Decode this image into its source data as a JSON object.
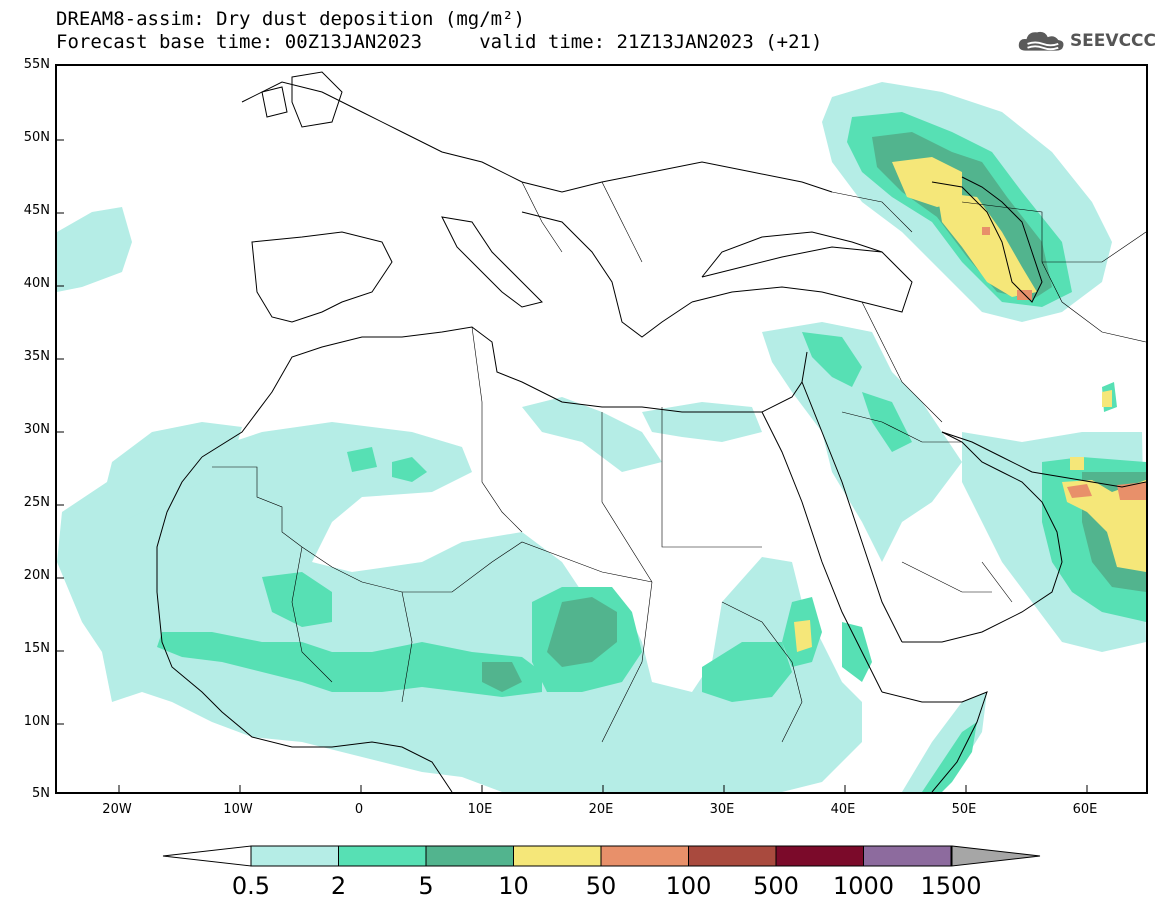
{
  "title": {
    "line1": "DREAM8-assim: Dry dust deposition (mg/m²)",
    "line2": "Forecast base time: 00Z13JAN2023     valid time: 21Z13JAN2023 (+21)"
  },
  "logo": {
    "text": "SEEVCCC",
    "icon": "cloud-icon"
  },
  "map": {
    "lat_labels": [
      "55N",
      "50N",
      "45N",
      "40N",
      "35N",
      "30N",
      "25N",
      "20N",
      "15N",
      "10N",
      "5N"
    ],
    "lon_labels": [
      "20W",
      "10W",
      "0",
      "10E",
      "20E",
      "30E",
      "40E",
      "50E",
      "60E"
    ]
  },
  "colorbar": {
    "labels": [
      "0.5",
      "2",
      "5",
      "10",
      "50",
      "100",
      "500",
      "1000",
      "1500"
    ],
    "colors": [
      "#b5ede6",
      "#57e0b4",
      "#52b48e",
      "#f5e779",
      "#e8906a",
      "#a94a3e",
      "#7b0a2a",
      "#8d6b9e",
      "#a6a6a6"
    ]
  }
}
